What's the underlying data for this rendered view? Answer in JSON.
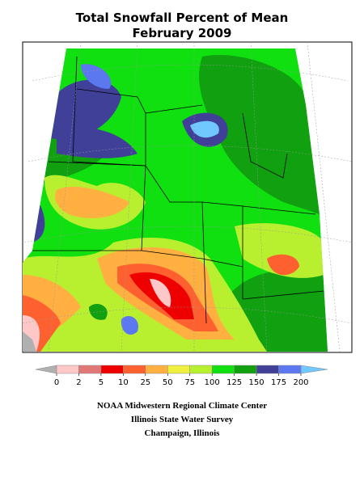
{
  "title": "Total Snowfall Percent of Mean",
  "subtitle": "February 2009",
  "legend": {
    "ticks": [
      0,
      2,
      5,
      10,
      25,
      50,
      75,
      100,
      125,
      150,
      175,
      200
    ],
    "colors": [
      "#ffc8c8",
      "#e07878",
      "#ee0000",
      "#ff6030",
      "#ffb040",
      "#f0f040",
      "#b8f030",
      "#10e010",
      "#10a010",
      "#404098",
      "#5c78f0"
    ],
    "under_color": "#b0b0b0",
    "over_color": "#70c8ff"
  },
  "credits": [
    "NOAA Midwestern Regional Climate Center",
    "Illinois State Water Survey",
    "Champaign, Illinois"
  ]
}
